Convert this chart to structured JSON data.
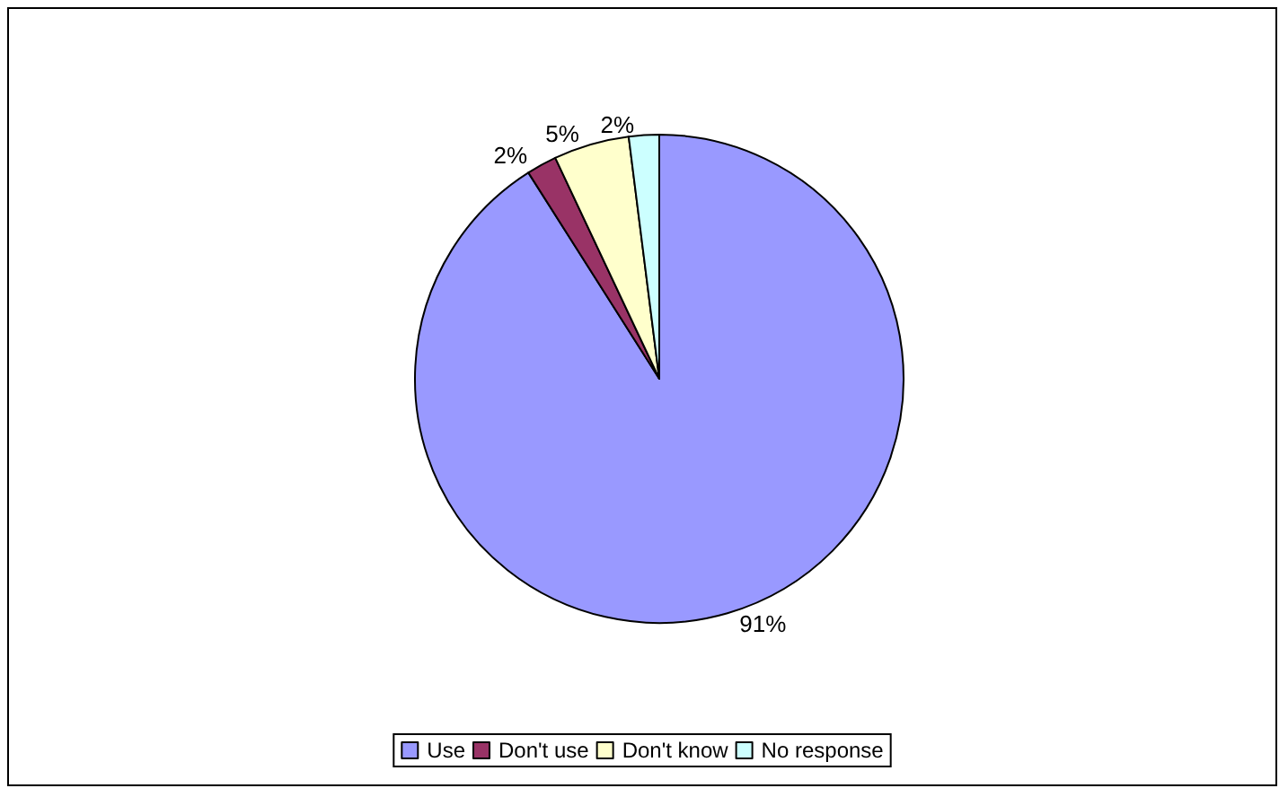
{
  "chart_data": {
    "type": "pie",
    "categories": [
      "Use",
      "Don't use",
      "Don't know",
      "No response"
    ],
    "values": [
      91,
      2,
      5,
      2
    ],
    "colors": [
      "#9999ff",
      "#993366",
      "#ffffcc",
      "#ccffff"
    ],
    "value_labels": [
      "91%",
      "2%",
      "5%",
      "2%"
    ],
    "legend": "bottom"
  }
}
